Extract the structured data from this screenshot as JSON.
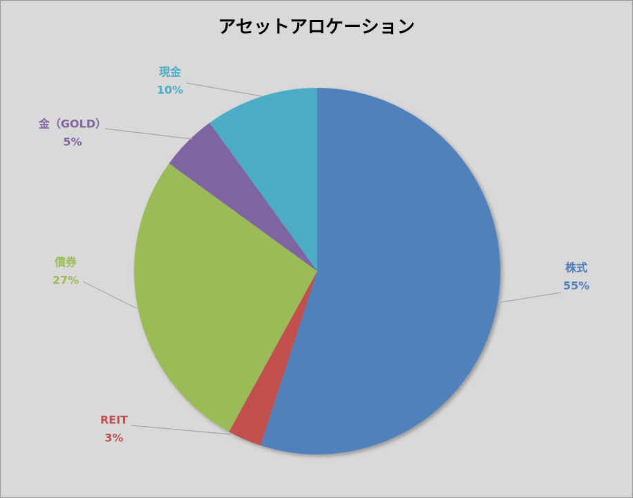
{
  "chart_data": {
    "type": "pie",
    "title": "アセットアロケーション",
    "categories": [
      "株式",
      "REIT",
      "債券",
      "金（GOLD）",
      "現金"
    ],
    "values": [
      55,
      3,
      27,
      5,
      10
    ],
    "value_labels": [
      "55%",
      "3%",
      "27%",
      "5%",
      "10%"
    ],
    "colors": [
      "#4f81bd",
      "#c0504d",
      "#9bbb59",
      "#8064a2",
      "#4bacc6"
    ]
  }
}
